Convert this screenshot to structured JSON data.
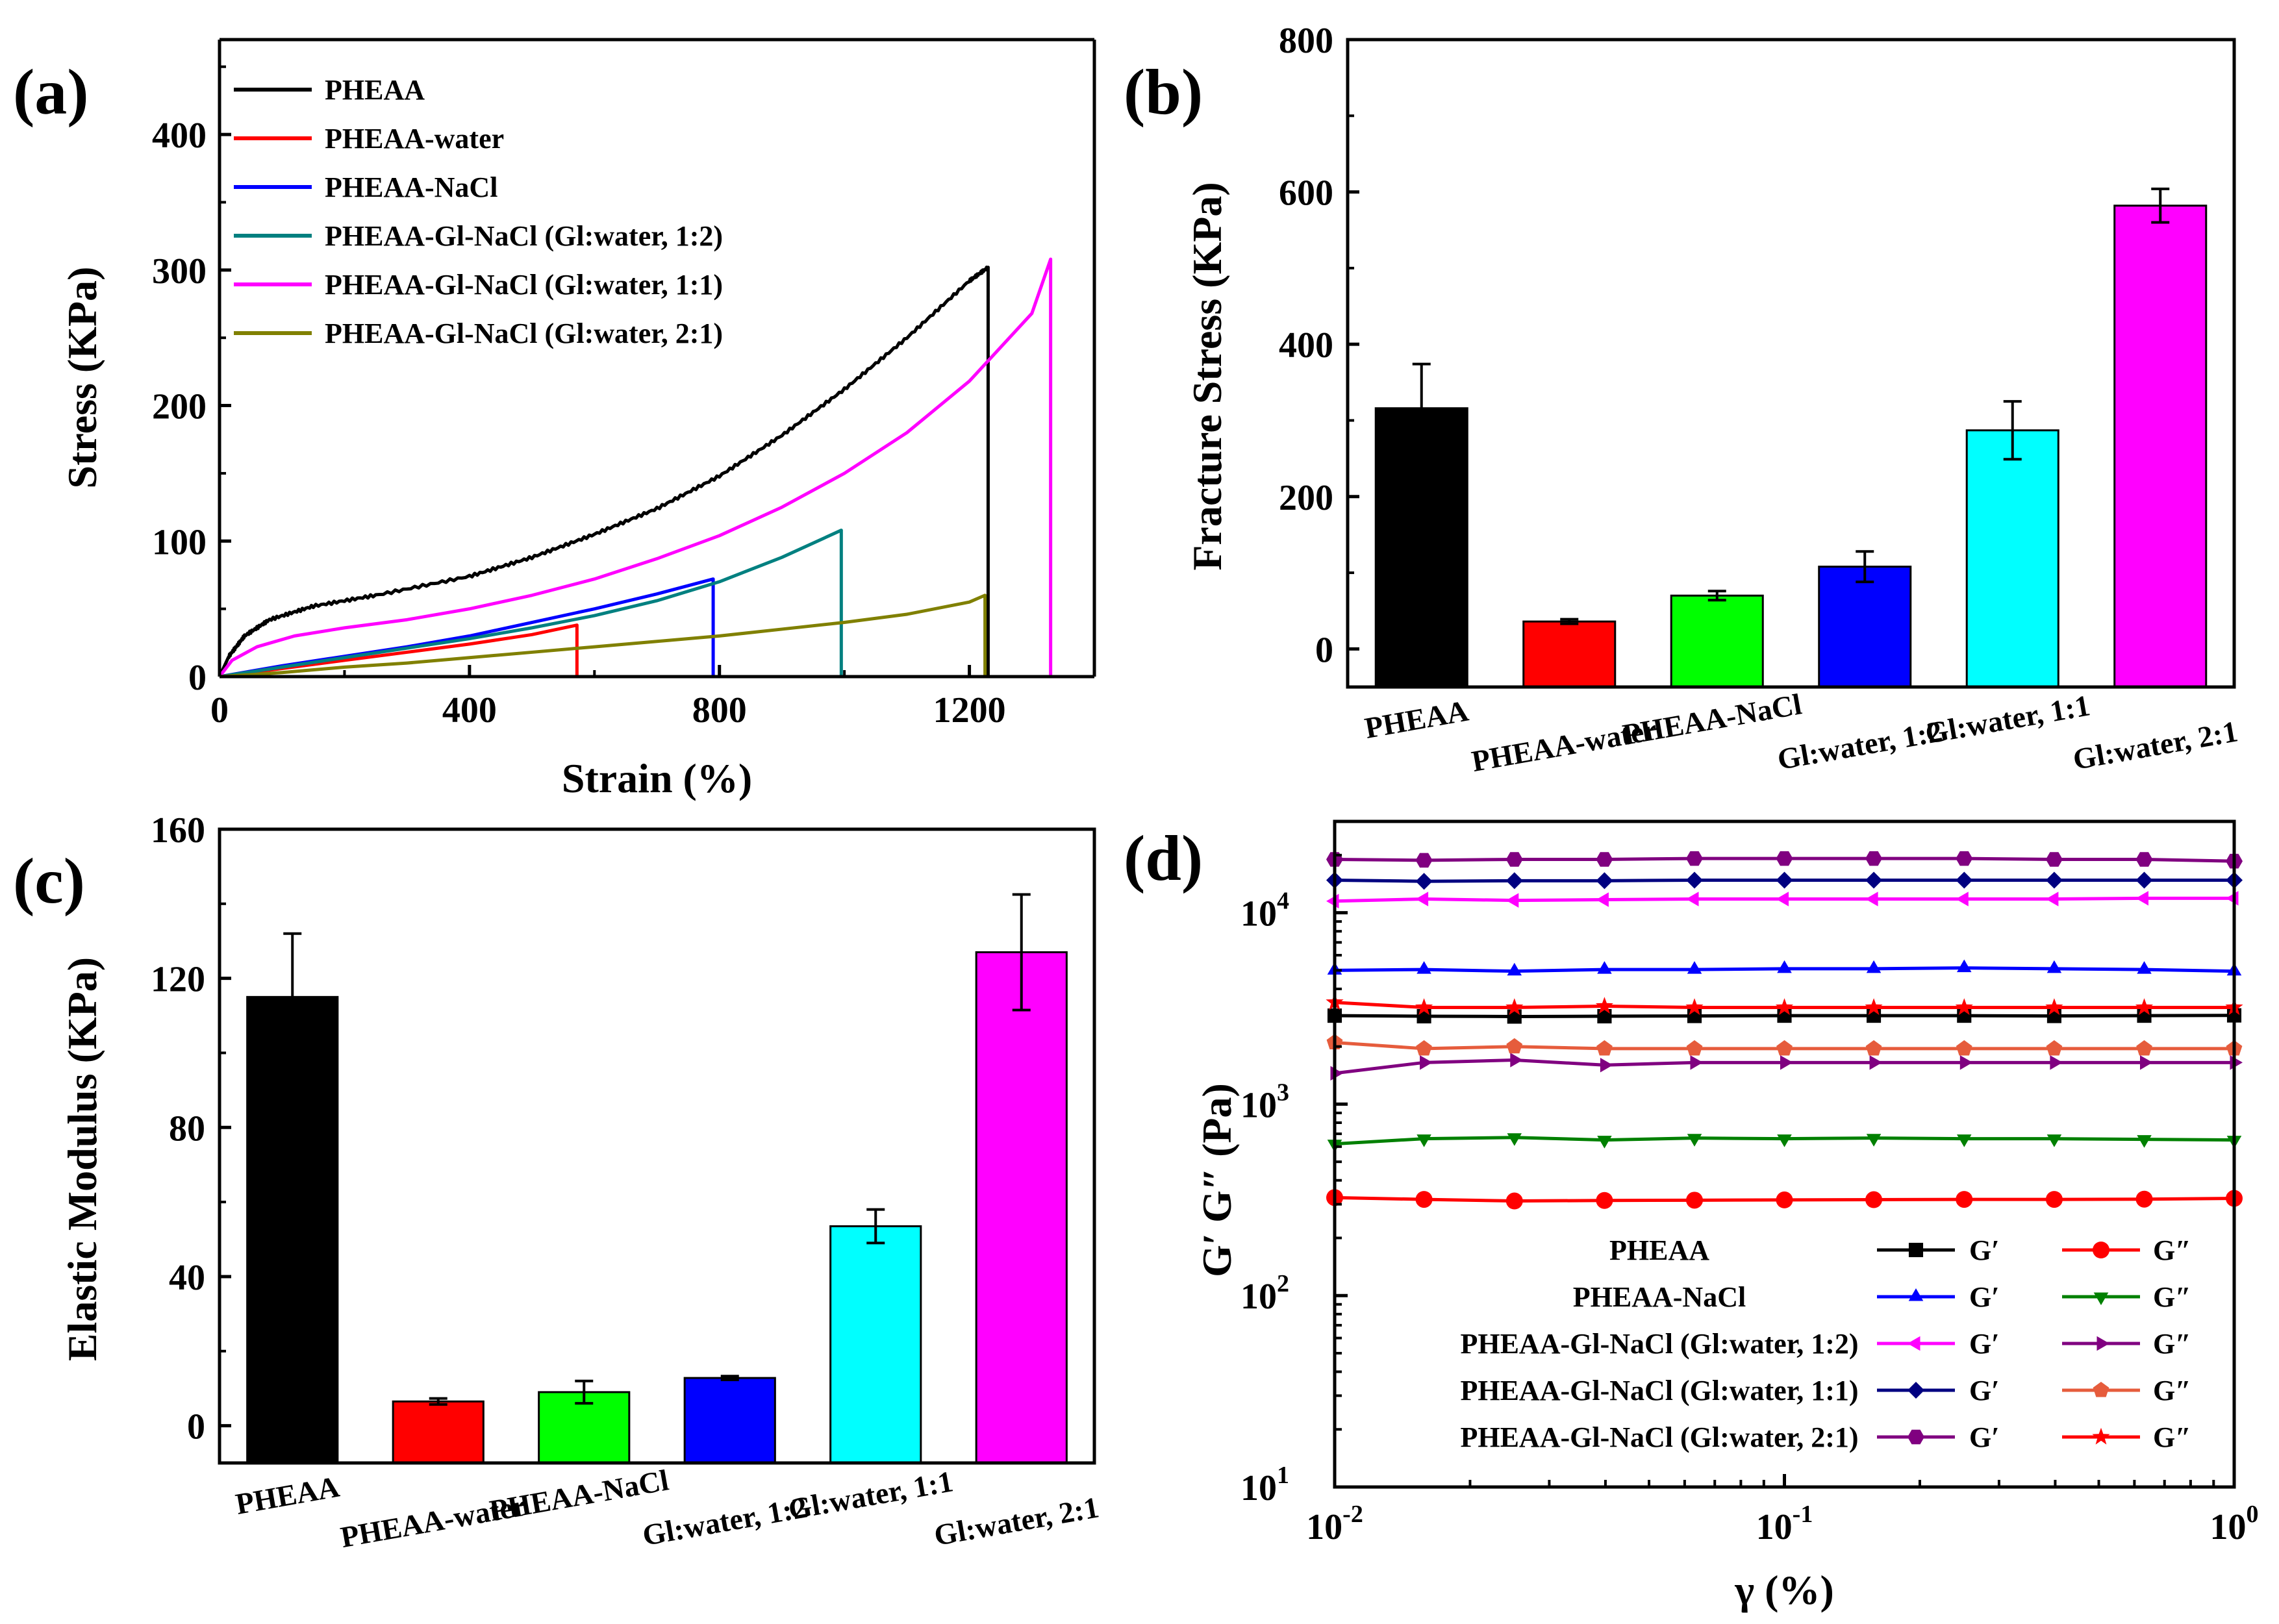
{
  "chart_data": [
    {
      "panel": "(a)",
      "type": "line",
      "xlabel": "Strain (%)",
      "ylabel": "Stress (KPa)",
      "xlim": [
        0,
        1400
      ],
      "ylim": [
        0,
        470
      ],
      "xticks": [
        0,
        400,
        800,
        1200
      ],
      "yticks": [
        0,
        100,
        200,
        300,
        400
      ],
      "legend_position": "top-left",
      "series": [
        {
          "name": "PHEAA",
          "color": "#000000",
          "noisy": true,
          "points": [
            [
              0,
              0
            ],
            [
              15,
              15
            ],
            [
              40,
              30
            ],
            [
              80,
              42
            ],
            [
              150,
              52
            ],
            [
              250,
              60
            ],
            [
              400,
              74
            ],
            [
              500,
              88
            ],
            [
              600,
              105
            ],
            [
              700,
              124
            ],
            [
              800,
              148
            ],
            [
              900,
              178
            ],
            [
              1000,
              212
            ],
            [
              1100,
              250
            ],
            [
              1200,
              292
            ],
            [
              1230,
              302
            ],
            [
              1230,
              0
            ]
          ]
        },
        {
          "name": "PHEAA-water",
          "color": "#ff0000",
          "points": [
            [
              0,
              0
            ],
            [
              100,
              6
            ],
            [
              200,
              12
            ],
            [
              300,
              18
            ],
            [
              400,
              24
            ],
            [
              500,
              31
            ],
            [
              572,
              38
            ],
            [
              572,
              0
            ]
          ]
        },
        {
          "name": "PHEAA-NaCl",
          "color": "#0000ff",
          "points": [
            [
              0,
              0
            ],
            [
              100,
              8
            ],
            [
              200,
              15
            ],
            [
              300,
              22
            ],
            [
              400,
              30
            ],
            [
              500,
              40
            ],
            [
              600,
              50
            ],
            [
              700,
              61
            ],
            [
              790,
              72
            ],
            [
              790,
              0
            ]
          ]
        },
        {
          "name": "PHEAA-Gl-NaCl (Gl:water, 1:2)",
          "color": "#008080",
          "points": [
            [
              0,
              0
            ],
            [
              100,
              7
            ],
            [
              200,
              14
            ],
            [
              300,
              21
            ],
            [
              400,
              28
            ],
            [
              500,
              36
            ],
            [
              600,
              45
            ],
            [
              700,
              56
            ],
            [
              800,
              70
            ],
            [
              900,
              88
            ],
            [
              995,
              108
            ],
            [
              995,
              0
            ]
          ]
        },
        {
          "name": "PHEAA-Gl-NaCl (Gl:water, 1:1)",
          "color": "#ff00ff",
          "points": [
            [
              0,
              0
            ],
            [
              20,
              12
            ],
            [
              60,
              22
            ],
            [
              120,
              30
            ],
            [
              200,
              36
            ],
            [
              300,
              42
            ],
            [
              400,
              50
            ],
            [
              500,
              60
            ],
            [
              600,
              72
            ],
            [
              700,
              87
            ],
            [
              800,
              104
            ],
            [
              900,
              125
            ],
            [
              1000,
              150
            ],
            [
              1100,
              180
            ],
            [
              1200,
              218
            ],
            [
              1300,
              268
            ],
            [
              1330,
              308
            ],
            [
              1330,
              0
            ]
          ]
        },
        {
          "name": "PHEAA-Gl-NaCl (Gl:water, 2:1)",
          "color": "#808000",
          "points": [
            [
              0,
              0
            ],
            [
              100,
              3
            ],
            [
              200,
              7
            ],
            [
              300,
              10
            ],
            [
              400,
              14
            ],
            [
              500,
              18
            ],
            [
              600,
              22
            ],
            [
              700,
              26
            ],
            [
              800,
              30
            ],
            [
              900,
              35
            ],
            [
              1000,
              40
            ],
            [
              1100,
              46
            ],
            [
              1200,
              55
            ],
            [
              1225,
              60
            ],
            [
              1225,
              0
            ]
          ]
        }
      ]
    },
    {
      "panel": "(b)",
      "type": "bar",
      "ylabel": "Fracture Stress (KPa)",
      "ylim": [
        -50,
        800
      ],
      "yticks": [
        0,
        200,
        400,
        600,
        800
      ],
      "categories": [
        "PHEAA",
        "PHEAA-water",
        "PHEAA-NaCl",
        "Gl:water, 1:2",
        "Gl:water, 1:1",
        "Gl:water, 2:1"
      ],
      "values": [
        316,
        36,
        70,
        108,
        287,
        582
      ],
      "errors": [
        58,
        3,
        6,
        20,
        38,
        22
      ],
      "colors": [
        "#000000",
        "#ff0000",
        "#00ff00",
        "#0000ff",
        "#00ffff",
        "#ff00ff"
      ]
    },
    {
      "panel": "(c)",
      "type": "bar",
      "ylabel": "Elastic Modulus (KPa)",
      "ylim": [
        -10,
        160
      ],
      "yticks": [
        0,
        40,
        80,
        120,
        160
      ],
      "categories": [
        "PHEAA",
        "PHEAA-water",
        "PHEAA-NaCl",
        "Gl:water, 1:2",
        "Gl:water, 1:1",
        "Gl:water, 2:1"
      ],
      "values": [
        115,
        6.5,
        9,
        12.8,
        53.5,
        127
      ],
      "errors": [
        17,
        0.8,
        3,
        0.5,
        4.5,
        15.5
      ],
      "colors": [
        "#000000",
        "#ff0000",
        "#00ff00",
        "#0000ff",
        "#00ffff",
        "#ff00ff"
      ]
    },
    {
      "panel": "(d)",
      "type": "line",
      "xscale": "log",
      "yscale": "log",
      "xlabel": "γ (%)",
      "ylabel": "G′ G″ (Pa)",
      "xlim": [
        0.01,
        1
      ],
      "ylim": [
        10,
        30000
      ],
      "xticks": [
        {
          "base": "10",
          "exp": "-2"
        },
        {
          "base": "10",
          "exp": "-1"
        },
        {
          "base": "10",
          "exp": "0"
        }
      ],
      "yticks": [
        {
          "base": "10",
          "exp": "1"
        },
        {
          "base": "10",
          "exp": "2"
        },
        {
          "base": "10",
          "exp": "3"
        },
        {
          "base": "10",
          "exp": "4"
        }
      ],
      "legend_position": "bottom-center",
      "x": [
        0.01,
        0.0158,
        0.0251,
        0.0398,
        0.0631,
        0.1,
        0.158,
        0.251,
        0.398,
        0.631,
        1.0
      ],
      "series": [
        {
          "name": "PHEAA",
          "mod": "G′",
          "color": "#000000",
          "marker": "square",
          "values": [
            2900,
            2880,
            2870,
            2880,
            2890,
            2900,
            2900,
            2900,
            2890,
            2900,
            2910
          ]
        },
        {
          "name": "PHEAA",
          "mod": "G″",
          "color": "#ff0000",
          "marker": "circle",
          "values": [
            325,
            318,
            312,
            314,
            315,
            316,
            317,
            318,
            318,
            319,
            322
          ]
        },
        {
          "name": "PHEAA-NaCl",
          "mod": "G′",
          "color": "#0000ff",
          "marker": "triangle-up",
          "values": [
            5000,
            5050,
            4950,
            5050,
            5050,
            5100,
            5100,
            5150,
            5100,
            5050,
            4950
          ]
        },
        {
          "name": "PHEAA-NaCl",
          "mod": "G″",
          "color": "#008000",
          "marker": "triangle-down",
          "values": [
            620,
            660,
            670,
            650,
            665,
            660,
            665,
            660,
            660,
            655,
            650
          ]
        },
        {
          "name": "PHEAA-Gl-NaCl (Gl:water, 1:2)",
          "mod": "G′",
          "color": "#ff00ff",
          "marker": "triangle-left",
          "values": [
            11500,
            11800,
            11600,
            11700,
            11800,
            11800,
            11800,
            11800,
            11800,
            11900,
            11900
          ]
        },
        {
          "name": "PHEAA-Gl-NaCl (Gl:water, 1:2)",
          "mod": "G″",
          "color": "#800080",
          "marker": "triangle-right",
          "values": [
            1450,
            1650,
            1700,
            1600,
            1650,
            1650,
            1650,
            1650,
            1650,
            1650,
            1650
          ]
        },
        {
          "name": "PHEAA-Gl-NaCl (Gl:water, 1:1)",
          "mod": "G′",
          "color": "#000080",
          "marker": "diamond",
          "values": [
            14800,
            14600,
            14700,
            14700,
            14800,
            14800,
            14800,
            14800,
            14800,
            14800,
            14800
          ]
        },
        {
          "name": "PHEAA-Gl-NaCl (Gl:water, 1:1)",
          "mod": "G″",
          "color": "#e65c3c",
          "marker": "pentagon",
          "values": [
            2100,
            1950,
            2000,
            1950,
            1950,
            1950,
            1950,
            1950,
            1950,
            1950,
            1950
          ]
        },
        {
          "name": "PHEAA-Gl-NaCl (Gl:water, 2:1)",
          "mod": "G′",
          "color": "#800080",
          "marker": "hexagon",
          "values": [
            19000,
            18800,
            19000,
            19000,
            19200,
            19200,
            19200,
            19200,
            19000,
            19000,
            18600
          ]
        },
        {
          "name": "PHEAA-Gl-NaCl (Gl:water, 2:1)",
          "mod": "G″",
          "color": "#ff0000",
          "marker": "star",
          "values": [
            3400,
            3200,
            3200,
            3250,
            3200,
            3200,
            3200,
            3200,
            3200,
            3200,
            3200
          ]
        }
      ]
    }
  ]
}
